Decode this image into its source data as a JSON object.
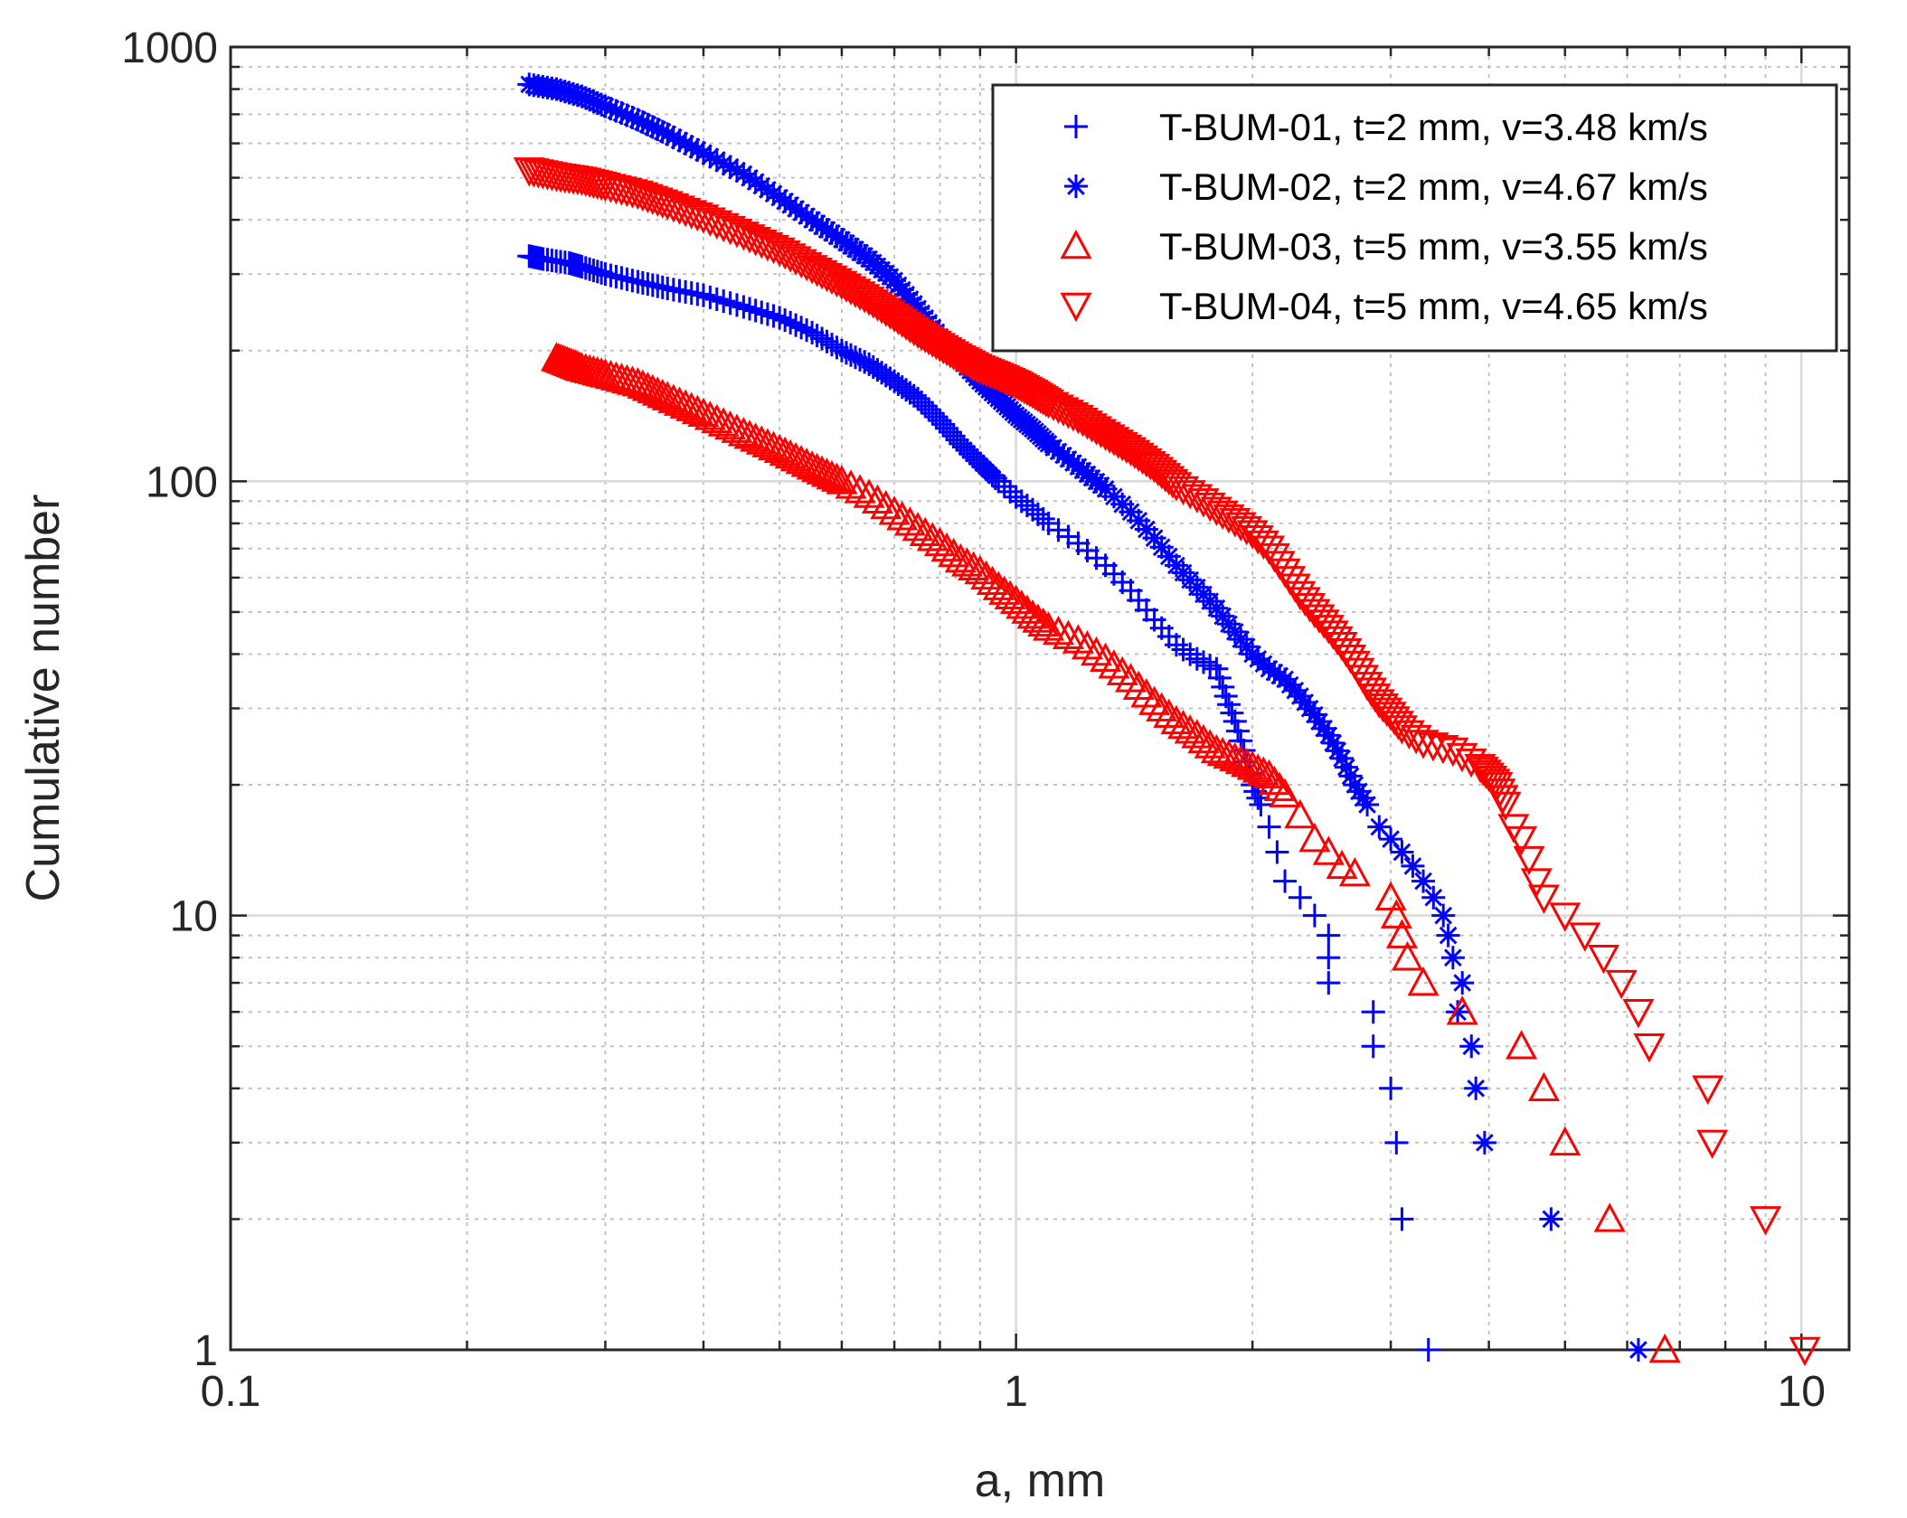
{
  "chart_data": {
    "type": "scatter",
    "title": "",
    "xlabel": "a, mm",
    "ylabel": "Cumulative number",
    "xscale": "log",
    "yscale": "log",
    "xlim": [
      0.1,
      11.5
    ],
    "ylim": [
      1,
      1000
    ],
    "grid": true,
    "legend_position": "top-right",
    "x_ticks": [
      {
        "value": 0.1,
        "label": "0.1"
      },
      {
        "value": 1,
        "label": "1"
      },
      {
        "value": 10,
        "label": "10"
      }
    ],
    "y_ticks": [
      {
        "value": 1,
        "label": "1"
      },
      {
        "value": 10,
        "label": "10"
      },
      {
        "value": 100,
        "label": "100"
      },
      {
        "value": 1000,
        "label": "1000"
      }
    ],
    "series": [
      {
        "name": "T-BUM-01, t=2 mm, v=3.48 km/s",
        "marker": "plus",
        "color": "#0000ff",
        "points": [
          [
            0.24,
            330
          ],
          [
            0.25,
            325
          ],
          [
            0.27,
            318
          ],
          [
            0.28,
            312
          ],
          [
            0.3,
            300
          ],
          [
            0.33,
            288
          ],
          [
            0.36,
            278
          ],
          [
            0.4,
            268
          ],
          [
            0.45,
            252
          ],
          [
            0.5,
            238
          ],
          [
            0.55,
            220
          ],
          [
            0.6,
            200
          ],
          [
            0.65,
            186
          ],
          [
            0.7,
            170
          ],
          [
            0.75,
            155
          ],
          [
            0.8,
            138
          ],
          [
            0.85,
            122
          ],
          [
            0.9,
            110
          ],
          [
            0.95,
            100
          ],
          [
            1.0,
            92
          ],
          [
            1.05,
            86
          ],
          [
            1.1,
            80
          ],
          [
            1.2,
            72
          ],
          [
            1.3,
            64
          ],
          [
            1.4,
            56
          ],
          [
            1.5,
            48
          ],
          [
            1.6,
            42
          ],
          [
            1.7,
            39
          ],
          [
            1.8,
            37
          ],
          [
            1.85,
            32
          ],
          [
            1.9,
            28
          ],
          [
            1.95,
            24
          ],
          [
            2.0,
            20
          ],
          [
            2.05,
            18
          ],
          [
            2.1,
            16
          ],
          [
            2.15,
            14
          ],
          [
            2.2,
            12
          ],
          [
            2.3,
            11
          ],
          [
            2.4,
            10
          ],
          [
            2.5,
            9
          ],
          [
            2.5,
            8
          ],
          [
            2.5,
            7
          ],
          [
            2.85,
            6
          ],
          [
            2.85,
            5
          ],
          [
            3.0,
            4
          ],
          [
            3.05,
            3
          ],
          [
            3.1,
            2
          ],
          [
            3.35,
            1
          ]
        ]
      },
      {
        "name": "T-BUM-02, t=2 mm, v=4.67 km/s",
        "marker": "asterisk",
        "color": "#0000ff",
        "points": [
          [
            0.24,
            820
          ],
          [
            0.26,
            800
          ],
          [
            0.28,
            770
          ],
          [
            0.3,
            730
          ],
          [
            0.33,
            680
          ],
          [
            0.36,
            630
          ],
          [
            0.4,
            570
          ],
          [
            0.45,
            510
          ],
          [
            0.5,
            450
          ],
          [
            0.55,
            400
          ],
          [
            0.6,
            360
          ],
          [
            0.65,
            325
          ],
          [
            0.7,
            290
          ],
          [
            0.75,
            250
          ],
          [
            0.8,
            215
          ],
          [
            0.85,
            190
          ],
          [
            0.9,
            170
          ],
          [
            0.95,
            155
          ],
          [
            1.0,
            142
          ],
          [
            1.05,
            132
          ],
          [
            1.1,
            122
          ],
          [
            1.2,
            108
          ],
          [
            1.3,
            96
          ],
          [
            1.4,
            85
          ],
          [
            1.5,
            74
          ],
          [
            1.6,
            64
          ],
          [
            1.7,
            57
          ],
          [
            1.8,
            51
          ],
          [
            1.9,
            45
          ],
          [
            2.0,
            40
          ],
          [
            2.1,
            37
          ],
          [
            2.2,
            35
          ],
          [
            2.3,
            32
          ],
          [
            2.4,
            29
          ],
          [
            2.5,
            26
          ],
          [
            2.6,
            23
          ],
          [
            2.7,
            20
          ],
          [
            2.8,
            18
          ],
          [
            2.9,
            16
          ],
          [
            3.0,
            15
          ],
          [
            3.1,
            14
          ],
          [
            3.2,
            13
          ],
          [
            3.3,
            12
          ],
          [
            3.4,
            11
          ],
          [
            3.5,
            10
          ],
          [
            3.55,
            9
          ],
          [
            3.6,
            8
          ],
          [
            3.7,
            7
          ],
          [
            3.65,
            6
          ],
          [
            3.8,
            5
          ],
          [
            3.85,
            4
          ],
          [
            3.95,
            3
          ],
          [
            4.8,
            2
          ],
          [
            6.2,
            1
          ]
        ]
      },
      {
        "name": "T-BUM-03, t=5 mm, v=3.55 km/s",
        "marker": "triangle-up",
        "color": "#ff0000",
        "points": [
          [
            0.26,
            192
          ],
          [
            0.27,
            187
          ],
          [
            0.28,
            182
          ],
          [
            0.3,
            176
          ],
          [
            0.33,
            168
          ],
          [
            0.36,
            156
          ],
          [
            0.4,
            143
          ],
          [
            0.45,
            129
          ],
          [
            0.5,
            118
          ],
          [
            0.55,
            108
          ],
          [
            0.6,
            100
          ],
          [
            0.65,
            93
          ],
          [
            0.7,
            85
          ],
          [
            0.75,
            78
          ],
          [
            0.8,
            72
          ],
          [
            0.85,
            66
          ],
          [
            0.9,
            62
          ],
          [
            0.95,
            57
          ],
          [
            1.0,
            53
          ],
          [
            1.05,
            49
          ],
          [
            1.1,
            46
          ],
          [
            1.2,
            43
          ],
          [
            1.3,
            39
          ],
          [
            1.4,
            35
          ],
          [
            1.5,
            31
          ],
          [
            1.6,
            28
          ],
          [
            1.7,
            26
          ],
          [
            1.8,
            24
          ],
          [
            1.9,
            23
          ],
          [
            2.0,
            22
          ],
          [
            2.1,
            21
          ],
          [
            2.2,
            19
          ],
          [
            2.3,
            17
          ],
          [
            2.4,
            15
          ],
          [
            2.5,
            14
          ],
          [
            2.6,
            13
          ],
          [
            2.7,
            12.5
          ],
          [
            3.0,
            11
          ],
          [
            3.05,
            10
          ],
          [
            3.1,
            9
          ],
          [
            3.15,
            8
          ],
          [
            3.3,
            7
          ],
          [
            3.7,
            6
          ],
          [
            4.4,
            5
          ],
          [
            4.7,
            4
          ],
          [
            5.0,
            3
          ],
          [
            5.7,
            2
          ],
          [
            6.7,
            1
          ]
        ]
      },
      {
        "name": "T-BUM-04, t=5 mm, v=4.65 km/s",
        "marker": "triangle-down",
        "color": "#ff0000",
        "points": [
          [
            0.24,
            520
          ],
          [
            0.26,
            505
          ],
          [
            0.28,
            495
          ],
          [
            0.3,
            480
          ],
          [
            0.33,
            460
          ],
          [
            0.36,
            435
          ],
          [
            0.4,
            405
          ],
          [
            0.45,
            370
          ],
          [
            0.5,
            340
          ],
          [
            0.55,
            310
          ],
          [
            0.6,
            285
          ],
          [
            0.65,
            262
          ],
          [
            0.7,
            240
          ],
          [
            0.75,
            220
          ],
          [
            0.8,
            205
          ],
          [
            0.85,
            192
          ],
          [
            0.9,
            182
          ],
          [
            0.95,
            175
          ],
          [
            1.0,
            168
          ],
          [
            1.05,
            160
          ],
          [
            1.1,
            152
          ],
          [
            1.2,
            140
          ],
          [
            1.3,
            128
          ],
          [
            1.4,
            118
          ],
          [
            1.5,
            108
          ],
          [
            1.6,
            98
          ],
          [
            1.7,
            92
          ],
          [
            1.8,
            86
          ],
          [
            1.9,
            81
          ],
          [
            2.0,
            76
          ],
          [
            2.1,
            70
          ],
          [
            2.2,
            62
          ],
          [
            2.3,
            55
          ],
          [
            2.4,
            50
          ],
          [
            2.5,
            46
          ],
          [
            2.6,
            42
          ],
          [
            2.7,
            38
          ],
          [
            2.8,
            34
          ],
          [
            2.9,
            31
          ],
          [
            3.0,
            29
          ],
          [
            3.1,
            27
          ],
          [
            3.3,
            25
          ],
          [
            3.6,
            24
          ],
          [
            3.9,
            22
          ],
          [
            4.0,
            21
          ],
          [
            4.1,
            20
          ],
          [
            4.2,
            18
          ],
          [
            4.3,
            16
          ],
          [
            4.4,
            15
          ],
          [
            4.5,
            13.5
          ],
          [
            4.6,
            12
          ],
          [
            4.7,
            11
          ],
          [
            5.0,
            10
          ],
          [
            5.3,
            9
          ],
          [
            5.6,
            8
          ],
          [
            5.9,
            7
          ],
          [
            6.2,
            6
          ],
          [
            6.4,
            5
          ],
          [
            7.6,
            4
          ],
          [
            7.7,
            3
          ],
          [
            9.0,
            2
          ],
          [
            10.1,
            1
          ]
        ]
      }
    ]
  }
}
